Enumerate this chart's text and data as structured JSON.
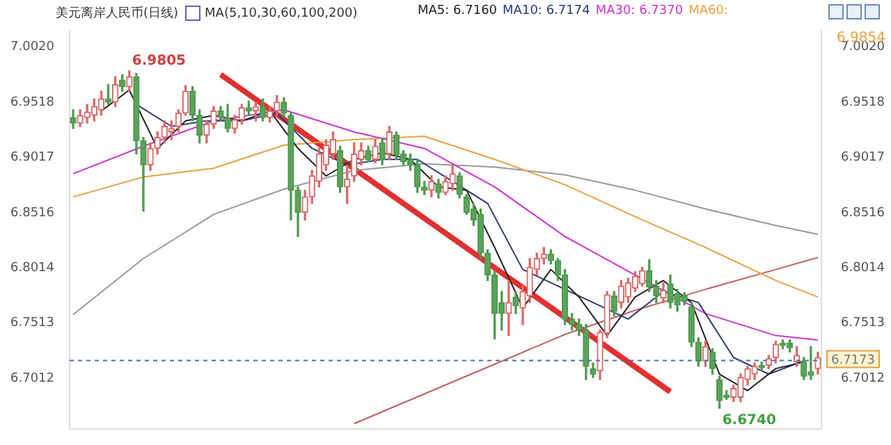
{
  "chart_data": {
    "type": "candlestick",
    "title": "美元离岸人民币(日线)",
    "categories": [
      null,
      null,
      null,
      null,
      null,
      null,
      null,
      null,
      null,
      null,
      null,
      null,
      null,
      null,
      null,
      null,
      null,
      null,
      null,
      null,
      null,
      null,
      null,
      null,
      null,
      null,
      null,
      null,
      null,
      null,
      null,
      null,
      null,
      null,
      null,
      null,
      null,
      null,
      null,
      null,
      null,
      null,
      null,
      null,
      null,
      null,
      null,
      null,
      null,
      null,
      null,
      null,
      null,
      null,
      null,
      null,
      null,
      null,
      null,
      null,
      null,
      null,
      null,
      null,
      null,
      null,
      null,
      null,
      null,
      null,
      null,
      null,
      null,
      null,
      null,
      null,
      null,
      null,
      null,
      null,
      null,
      null,
      null,
      null,
      null,
      null,
      null,
      null,
      null,
      null,
      null,
      null,
      null,
      null,
      null,
      null,
      null,
      null,
      null,
      null,
      null,
      null,
      null,
      null,
      null,
      null,
      null
    ],
    "ohlc": [
      [
        6.938,
        6.945,
        6.928,
        6.933
      ],
      [
        6.933,
        6.945,
        6.93,
        6.94
      ],
      [
        6.938,
        6.95,
        6.933,
        6.943
      ],
      [
        6.94,
        6.955,
        6.935,
        6.948
      ],
      [
        6.945,
        6.962,
        6.94,
        6.955
      ],
      [
        6.955,
        6.968,
        6.95,
        6.952
      ],
      [
        6.952,
        6.975,
        6.948,
        6.968
      ],
      [
        6.972,
        6.977,
        6.962,
        6.966
      ],
      [
        6.966,
        6.9805,
        6.962,
        6.975
      ],
      [
        6.975,
        6.978,
        6.905,
        6.917
      ],
      [
        6.917,
        6.92,
        6.853,
        6.895
      ],
      [
        6.895,
        6.915,
        6.89,
        6.91
      ],
      [
        6.91,
        6.925,
        6.905,
        6.92
      ],
      [
        6.92,
        6.935,
        6.915,
        6.93
      ],
      [
        6.925,
        6.935,
        6.918,
        6.928
      ],
      [
        6.93,
        6.945,
        6.925,
        6.942
      ],
      [
        6.942,
        6.967,
        6.94,
        6.962
      ],
      [
        6.962,
        6.966,
        6.935,
        6.94
      ],
      [
        6.94,
        6.945,
        6.915,
        6.922
      ],
      [
        6.922,
        6.935,
        6.915,
        6.932
      ],
      [
        6.932,
        6.948,
        6.928,
        6.944
      ],
      [
        6.944,
        6.948,
        6.935,
        6.938
      ],
      [
        6.938,
        6.95,
        6.925,
        6.928
      ],
      [
        6.928,
        6.94,
        6.924,
        6.936
      ],
      [
        6.936,
        6.95,
        6.932,
        6.947
      ],
      [
        6.947,
        6.953,
        6.94,
        6.944
      ],
      [
        6.944,
        6.952,
        6.935,
        6.948
      ],
      [
        6.948,
        6.955,
        6.935,
        6.938
      ],
      [
        6.938,
        6.948,
        6.934,
        6.944
      ],
      [
        6.944,
        6.958,
        6.94,
        6.952
      ],
      [
        6.952,
        6.956,
        6.938,
        6.942
      ],
      [
        6.94,
        6.942,
        6.845,
        6.872
      ],
      [
        6.872,
        6.875,
        6.83,
        6.852
      ],
      [
        6.852,
        6.872,
        6.845,
        6.866
      ],
      [
        6.866,
        6.89,
        6.86,
        6.885
      ],
      [
        6.88,
        6.91,
        6.875,
        6.905
      ],
      [
        6.895,
        6.918,
        6.89,
        6.913
      ],
      [
        6.905,
        6.925,
        6.9,
        6.918
      ],
      [
        6.908,
        6.912,
        6.87,
        6.875
      ],
      [
        6.875,
        6.895,
        6.86,
        6.882
      ],
      [
        6.885,
        6.915,
        6.88,
        6.905
      ],
      [
        6.9,
        6.915,
        6.895,
        6.908
      ],
      [
        6.908,
        6.912,
        6.898,
        6.9
      ],
      [
        6.9,
        6.918,
        6.897,
        6.912
      ],
      [
        6.915,
        6.918,
        6.895,
        6.9
      ],
      [
        6.905,
        6.93,
        6.9,
        6.925
      ],
      [
        6.922,
        6.925,
        6.9,
        6.904
      ],
      [
        6.905,
        6.908,
        6.895,
        6.898
      ],
      [
        6.9,
        6.905,
        6.89,
        6.895
      ],
      [
        6.895,
        6.9,
        6.87,
        6.875
      ],
      [
        6.875,
        6.88,
        6.868,
        6.872
      ],
      [
        6.872,
        6.885,
        6.866,
        6.88
      ],
      [
        6.878,
        6.882,
        6.865,
        6.87
      ],
      [
        6.87,
        6.885,
        6.868,
        6.88
      ],
      [
        6.878,
        6.895,
        6.872,
        6.887
      ],
      [
        6.885,
        6.888,
        6.865,
        6.868
      ],
      [
        6.866,
        6.868,
        6.85,
        6.852
      ],
      [
        6.855,
        6.86,
        6.84,
        6.845
      ],
      [
        6.85,
        6.855,
        6.81,
        6.815
      ],
      [
        6.815,
        6.818,
        6.79,
        6.795
      ],
      [
        6.795,
        6.798,
        6.737,
        6.76
      ],
      [
        6.77,
        6.78,
        6.745,
        6.76
      ],
      [
        6.76,
        6.79,
        6.74,
        6.77
      ],
      [
        6.775,
        6.78,
        6.76,
        6.767
      ],
      [
        6.765,
        6.785,
        6.75,
        6.78
      ],
      [
        6.776,
        6.81,
        6.77,
        6.802
      ],
      [
        6.8,
        6.815,
        6.795,
        6.81
      ],
      [
        6.81,
        6.82,
        6.805,
        6.814
      ],
      [
        6.814,
        6.818,
        6.805,
        6.808
      ],
      [
        6.808,
        6.81,
        6.79,
        6.795
      ],
      [
        6.795,
        6.8,
        6.75,
        6.755
      ],
      [
        6.755,
        6.76,
        6.745,
        6.75
      ],
      [
        6.75,
        6.755,
        6.74,
        6.745
      ],
      [
        6.745,
        6.75,
        6.7,
        6.712
      ],
      [
        6.71,
        6.715,
        6.702,
        6.705
      ],
      [
        6.708,
        6.745,
        6.7,
        6.743
      ],
      [
        6.742,
        6.78,
        6.738,
        6.777
      ],
      [
        6.776,
        6.78,
        6.758,
        6.762
      ],
      [
        6.77,
        6.79,
        6.765,
        6.785
      ],
      [
        6.775,
        6.792,
        6.77,
        6.788
      ],
      [
        6.783,
        6.798,
        6.78,
        6.794
      ],
      [
        6.787,
        6.802,
        6.785,
        6.799
      ],
      [
        6.799,
        6.809,
        6.78,
        6.784
      ],
      [
        6.785,
        6.79,
        6.77,
        6.776
      ],
      [
        6.774,
        6.788,
        6.77,
        6.781
      ],
      [
        6.787,
        6.795,
        6.765,
        6.77
      ],
      [
        6.778,
        6.782,
        6.762,
        6.768
      ],
      [
        6.776,
        6.779,
        6.768,
        6.771
      ],
      [
        6.766,
        6.77,
        6.73,
        6.734
      ],
      [
        6.734,
        6.738,
        6.712,
        6.717
      ],
      [
        6.717,
        6.735,
        6.712,
        6.73
      ],
      [
        6.725,
        6.728,
        6.705,
        6.71
      ],
      [
        6.7,
        6.703,
        6.674,
        6.681
      ],
      [
        6.686,
        6.69,
        6.682,
        6.684
      ],
      [
        6.684,
        6.695,
        6.68,
        6.692
      ],
      [
        6.684,
        6.705,
        6.68,
        6.702
      ],
      [
        6.7,
        6.712,
        6.695,
        6.71
      ],
      [
        6.705,
        6.715,
        6.7,
        6.712
      ],
      [
        6.713,
        6.716,
        6.708,
        6.711
      ],
      [
        6.713,
        6.722,
        6.71,
        6.719
      ],
      [
        6.72,
        6.735,
        6.715,
        6.732
      ],
      [
        6.733,
        6.736,
        6.728,
        6.731
      ],
      [
        6.733,
        6.736,
        6.725,
        6.729
      ],
      [
        6.716,
        6.73,
        6.712,
        6.722
      ],
      [
        6.716,
        6.72,
        6.7,
        6.703
      ],
      [
        6.707,
        6.73,
        6.7,
        6.704
      ],
      [
        6.71,
        6.725,
        6.705,
        6.72
      ]
    ],
    "series": [
      {
        "type": "line",
        "name": "MA5: 6.7160",
        "color": "#222222",
        "values": [
          null,
          null,
          null,
          null,
          6.944,
          null,
          null,
          null,
          6.963,
          null,
          null,
          null,
          6.91,
          null,
          null,
          null,
          6.935,
          null,
          null,
          null,
          6.94,
          null,
          null,
          null,
          6.935,
          null,
          null,
          null,
          6.944,
          null,
          null,
          null,
          6.91,
          null,
          null,
          null,
          6.885,
          null,
          null,
          null,
          6.9,
          null,
          null,
          null,
          6.906,
          null,
          null,
          null,
          6.9,
          null,
          null,
          null,
          6.875,
          null,
          null,
          null,
          6.872,
          null,
          null,
          null,
          6.82,
          null,
          null,
          null,
          6.765,
          null,
          null,
          null,
          6.8,
          null,
          null,
          null,
          6.775,
          null,
          null,
          null,
          6.74,
          null,
          null,
          null,
          6.775,
          null,
          null,
          null,
          6.79,
          null,
          null,
          null,
          6.77,
          null,
          null,
          null,
          6.705,
          null,
          null,
          null,
          6.69,
          null,
          null,
          null,
          6.71,
          null,
          null,
          null,
          6.716,
          null,
          null
        ]
      },
      {
        "type": "line",
        "name": "MA10: 6.7174",
        "color": "#2a3a7a",
        "values": [
          null,
          null,
          null,
          null,
          null,
          null,
          null,
          null,
          null,
          6.95,
          null,
          null,
          null,
          null,
          6.93,
          null,
          null,
          null,
          null,
          6.935,
          null,
          null,
          null,
          null,
          6.935,
          null,
          null,
          null,
          null,
          6.942,
          null,
          null,
          null,
          null,
          6.91,
          null,
          null,
          null,
          null,
          6.895,
          null,
          null,
          null,
          null,
          6.9,
          null,
          null,
          null,
          null,
          6.9,
          null,
          null,
          null,
          null,
          6.88,
          null,
          null,
          null,
          null,
          6.86,
          null,
          null,
          null,
          null,
          6.8,
          null,
          null,
          null,
          null,
          6.785,
          null,
          null,
          null,
          null,
          6.77,
          null,
          null,
          null,
          null,
          6.755,
          null,
          null,
          null,
          null,
          6.78,
          null,
          null,
          null,
          null,
          6.77,
          null,
          null,
          null,
          null,
          6.72,
          null,
          null,
          null,
          null,
          6.705,
          null,
          null,
          null,
          null,
          6.717,
          null,
          null
        ]
      },
      {
        "type": "line",
        "name": "MA30: 6.7370",
        "color": "#cc33cc",
        "values": [
          6.887,
          null,
          null,
          null,
          null,
          null,
          null,
          null,
          null,
          null,
          6.912,
          null,
          null,
          null,
          null,
          null,
          null,
          null,
          null,
          null,
          6.935,
          null,
          null,
          null,
          null,
          null,
          null,
          null,
          null,
          null,
          6.945,
          null,
          null,
          null,
          null,
          null,
          null,
          null,
          null,
          null,
          6.925,
          null,
          null,
          null,
          null,
          null,
          null,
          null,
          null,
          null,
          6.91,
          null,
          null,
          null,
          null,
          null,
          null,
          null,
          null,
          null,
          6.875,
          null,
          null,
          null,
          null,
          null,
          null,
          null,
          null,
          null,
          6.83,
          null,
          null,
          null,
          null,
          null,
          null,
          null,
          null,
          null,
          6.795,
          null,
          null,
          null,
          null,
          null,
          null,
          null,
          null,
          null,
          6.76,
          null,
          null,
          null,
          null,
          null,
          null,
          null,
          null,
          null,
          6.74,
          null,
          null,
          null,
          null,
          null,
          6.736
        ]
      },
      {
        "type": "line",
        "name": "MA60:",
        "color": "#e8a040",
        "values": [
          6.866,
          null,
          null,
          null,
          null,
          null,
          null,
          null,
          null,
          null,
          6.884,
          null,
          null,
          null,
          null,
          null,
          null,
          null,
          null,
          null,
          6.892,
          null,
          null,
          null,
          null,
          null,
          null,
          null,
          null,
          null,
          6.913,
          null,
          null,
          null,
          null,
          null,
          null,
          null,
          null,
          null,
          6.918,
          null,
          null,
          null,
          null,
          null,
          null,
          null,
          null,
          null,
          6.921,
          null,
          null,
          null,
          null,
          null,
          null,
          null,
          null,
          null,
          6.9,
          null,
          null,
          null,
          null,
          null,
          null,
          null,
          null,
          null,
          6.877,
          null,
          null,
          null,
          null,
          null,
          null,
          null,
          null,
          null,
          6.848,
          null,
          null,
          null,
          null,
          null,
          null,
          null,
          null,
          null,
          6.82,
          null,
          null,
          null,
          null,
          null,
          null,
          null,
          null,
          null,
          6.79,
          null,
          null,
          null,
          null,
          null,
          6.775
        ]
      },
      {
        "type": "line",
        "color": "#999999",
        "values": [
          6.759,
          null,
          null,
          null,
          null,
          null,
          null,
          null,
          null,
          null,
          6.81,
          null,
          null,
          null,
          null,
          null,
          null,
          null,
          null,
          null,
          6.85,
          null,
          null,
          null,
          null,
          null,
          null,
          null,
          null,
          null,
          6.873,
          null,
          null,
          null,
          null,
          null,
          null,
          null,
          null,
          null,
          6.89,
          null,
          null,
          null,
          null,
          null,
          null,
          null,
          null,
          null,
          6.896,
          null,
          null,
          null,
          null,
          null,
          null,
          null,
          null,
          null,
          6.893,
          null,
          null,
          null,
          null,
          null,
          null,
          null,
          null,
          null,
          6.886,
          null,
          null,
          null,
          null,
          null,
          null,
          null,
          null,
          null,
          6.872,
          null,
          null,
          null,
          null,
          null,
          null,
          null,
          null,
          null,
          6.855,
          null,
          null,
          null,
          null,
          null,
          null,
          null,
          null,
          null,
          6.84,
          null,
          null,
          null,
          null,
          null,
          6.832
        ]
      },
      {
        "type": "line",
        "color": "#c06060",
        "values": [
          null,
          null,
          null,
          null,
          null,
          null,
          null,
          null,
          null,
          null,
          null,
          null,
          null,
          null,
          null,
          null,
          null,
          null,
          null,
          null,
          null,
          null,
          null,
          null,
          null,
          null,
          null,
          null,
          null,
          null,
          null,
          null,
          null,
          null,
          null,
          null,
          null,
          null,
          null,
          null,
          6.66,
          null,
          null,
          null,
          null,
          null,
          null,
          null,
          null,
          null,
          6.687,
          null,
          null,
          null,
          null,
          null,
          null,
          null,
          null,
          null,
          6.714,
          null,
          null,
          null,
          null,
          null,
          null,
          null,
          null,
          null,
          6.741,
          null,
          null,
          null,
          null,
          null,
          null,
          null,
          null,
          null,
          6.763,
          null,
          null,
          null,
          null,
          null,
          null,
          null,
          null,
          null,
          6.782,
          null,
          null,
          null,
          null,
          null,
          null,
          null,
          null,
          null,
          6.8,
          null,
          null,
          null,
          null,
          null,
          6.811
        ]
      },
      {
        "type": "line",
        "color": "#e03030",
        "values": [
          null,
          null,
          null,
          null,
          null,
          null,
          null,
          null,
          null,
          null,
          null,
          null,
          null,
          null,
          null,
          null,
          null,
          null,
          null,
          null,
          null,
          6.977,
          null,
          null,
          null,
          null,
          null,
          null,
          null,
          null,
          null,
          null,
          null,
          null,
          null,
          null,
          null,
          null,
          null,
          null,
          null,
          null,
          null,
          null,
          null,
          null,
          null,
          null,
          null,
          null,
          null,
          null,
          null,
          null,
          null,
          null,
          null,
          null,
          null,
          null,
          null,
          null,
          null,
          null,
          null,
          null,
          null,
          null,
          null,
          null,
          null,
          null,
          null,
          null,
          null,
          null,
          null,
          null,
          null,
          null,
          null,
          null,
          null,
          null,
          null,
          6.689,
          null,
          null,
          null,
          null,
          null,
          null,
          null,
          null,
          null,
          null,
          null,
          null,
          null,
          null,
          null,
          null,
          null,
          null,
          null,
          null,
          null
        ]
      }
    ],
    "ylim": [
      6.655,
      7.017
    ],
    "yticks": [
      {
        "value": 7.002,
        "label": "7.0020"
      },
      6.9518,
      6.9017,
      6.8516,
      6.8014,
      6.7513,
      6.7012
    ],
    "y2lim": [
      6.655,
      7.017
    ],
    "y2ticks": [
      {
        "value": 7.002,
        "label": "7.0020"
      },
      6.9518,
      6.9017,
      6.8516,
      6.8014,
      6.7513,
      6.7012
    ],
    "tick_labels": "y",
    "legend": "top",
    "ref_lines": [
      {
        "axis": "y2",
        "value": 6.7173,
        "label": "6.7173",
        "color": "#4a6fa5",
        "line_style": "dashed"
      }
    ],
    "annotations": [
      "MA(5,10,30,60,100,200)",
      "6.9854",
      "6.9805",
      "6.6740"
    ]
  }
}
